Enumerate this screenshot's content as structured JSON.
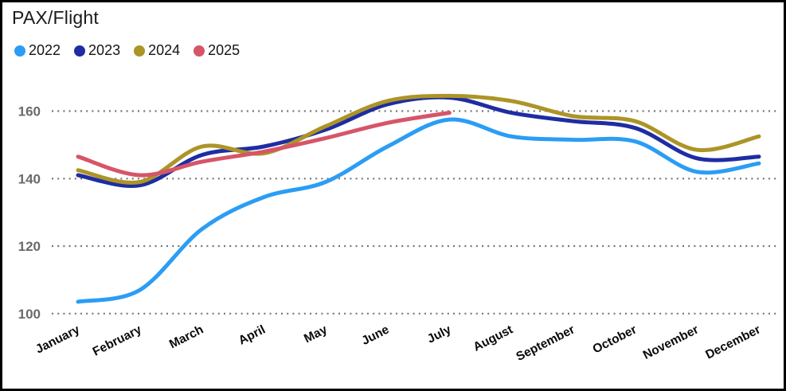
{
  "window": {
    "title": "PAX/Flight"
  },
  "chart_data": {
    "type": "line",
    "title": "PAX/Flight",
    "categories": [
      "January",
      "February",
      "March",
      "April",
      "May",
      "June",
      "July",
      "August",
      "September",
      "October",
      "November",
      "December"
    ],
    "series": [
      {
        "name": "2022",
        "color": "#2B9DF4",
        "values": [
          103.5,
          107,
          125,
          134.5,
          139,
          149.5,
          157.5,
          152.5,
          151.5,
          151,
          142,
          144.5
        ]
      },
      {
        "name": "2023",
        "color": "#1E2DA3",
        "values": [
          141,
          138,
          147,
          149.5,
          154.5,
          162,
          164,
          159.5,
          157,
          155,
          146,
          146.5
        ]
      },
      {
        "name": "2024",
        "color": "#AC9427",
        "values": [
          142.5,
          139,
          149.5,
          147.5,
          155.5,
          163,
          164.5,
          163,
          158.5,
          157,
          148.5,
          152.5
        ]
      },
      {
        "name": "2025",
        "color": "#D65569",
        "values": [
          146.5,
          141,
          145,
          148,
          152,
          156.5,
          159.5
        ]
      }
    ],
    "yticks": [
      100,
      120,
      140,
      160
    ],
    "ylim": [
      97,
      170
    ],
    "xlabel": "",
    "ylabel": "",
    "grid": "horizontal-dotted",
    "legend_position": "top-left",
    "x_label_rotation_deg": -27
  },
  "style": {
    "grid_color": "#757575",
    "ytick_color": "#6a6a6a",
    "xtick_color": "#0a0a0a",
    "background": "#ffffff",
    "border_color": "#000000"
  }
}
